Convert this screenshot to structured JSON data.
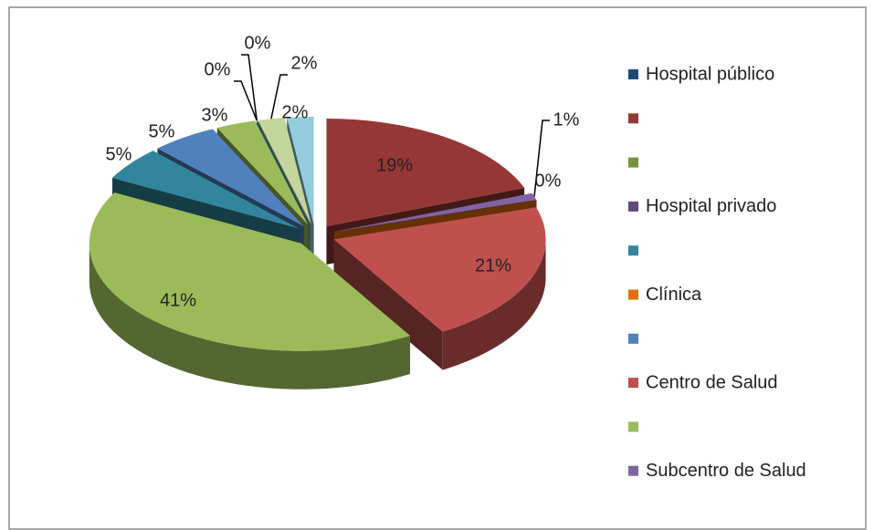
{
  "chart_data": {
    "type": "pie3d",
    "values": [
      19,
      1,
      0,
      21,
      41,
      5,
      5,
      3,
      0,
      0,
      2,
      2
    ],
    "value_labels": [
      "19%",
      "1%",
      "0%",
      "21%",
      "41%",
      "5%",
      "5%",
      "3%",
      "0%",
      "0%",
      "2%",
      "2%"
    ],
    "colors": [
      "#953735",
      "#8064a2",
      "#e46c0a",
      "#c0504d",
      "#9bbb59",
      "#31859c",
      "#4f81bd",
      "#9bbb59",
      "#8064a2",
      "#4bacc6",
      "#c3d69b",
      "#93cddd"
    ],
    "legend": [
      {
        "label": "Hospital público",
        "color": "#1f497d"
      },
      {
        "label": null,
        "color": "#953735"
      },
      {
        "label": null,
        "color": "#77933c"
      },
      {
        "label": "Hospital privado",
        "color": "#604a7b"
      },
      {
        "label": null,
        "color": "#31859c"
      },
      {
        "label": "Clínica",
        "color": "#e46c0a"
      },
      {
        "label": null,
        "color": "#4f81bd"
      },
      {
        "label": "Centro de Salud",
        "color": "#c0504d"
      },
      {
        "label": null,
        "color": "#9bbb59"
      },
      {
        "label": "Subcentro de Salud",
        "color": "#8064a2"
      }
    ]
  }
}
